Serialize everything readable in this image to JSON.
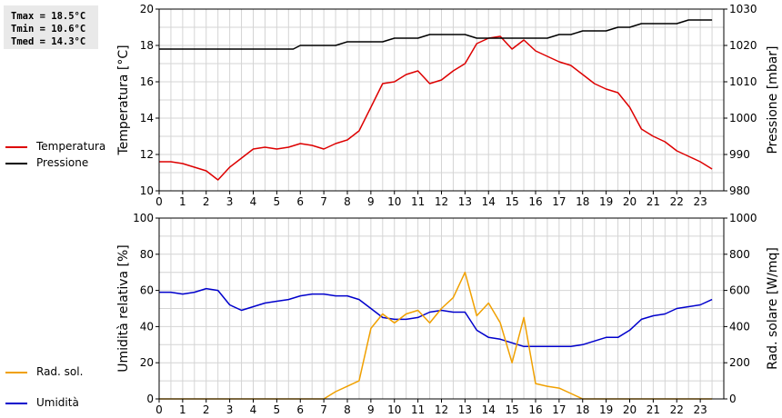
{
  "stats": {
    "tmax": "Tmax = 18.5°C",
    "tmin": "Tmin = 10.6°C",
    "tmed": "Tmed = 14.3°C"
  },
  "legend_top": [
    {
      "label": "Temperatura",
      "color": "#dd0000"
    },
    {
      "label": "Pressione",
      "color": "#000000"
    }
  ],
  "legend_bottom": [
    {
      "label": "Umidità",
      "color": "#0000cc"
    },
    {
      "label": "Rad. sol.",
      "color": "#f0a000"
    }
  ],
  "chart_data": [
    {
      "type": "line",
      "xlim": [
        0,
        24
      ],
      "x_ticks": [
        "0",
        "1",
        "2",
        "3",
        "4",
        "5",
        "6",
        "7",
        "8",
        "9",
        "10",
        "11",
        "12",
        "13",
        "14",
        "15",
        "16",
        "17",
        "18",
        "19",
        "20",
        "21",
        "22",
        "23"
      ],
      "grid": true,
      "ylabel": "Temperatura [°C]",
      "ylim": [
        10,
        20
      ],
      "y_ticks": [
        "10",
        "12",
        "14",
        "16",
        "18",
        "20"
      ],
      "y2label": "Pressione [mbar]",
      "y2lim": [
        980,
        1030
      ],
      "y2_ticks": [
        "980",
        "990",
        "1000",
        "1010",
        "1020",
        "1030"
      ],
      "series": [
        {
          "name": "Temperatura",
          "color": "#dd0000",
          "axis": "left",
          "x": [
            0,
            0.5,
            1,
            1.5,
            2,
            2.5,
            3,
            3.5,
            4,
            4.5,
            5,
            5.5,
            6,
            6.5,
            7,
            7.5,
            8,
            8.5,
            9,
            9.5,
            10,
            10.5,
            11,
            11.5,
            12,
            12.5,
            13,
            13.5,
            14,
            14.5,
            15,
            15.5,
            16,
            16.5,
            17,
            17.5,
            18,
            18.5,
            19,
            19.5,
            20,
            20.5,
            21,
            21.5,
            22,
            22.5,
            23,
            23.5
          ],
          "y": [
            11.6,
            11.6,
            11.5,
            11.3,
            11.1,
            10.6,
            11.3,
            11.8,
            12.3,
            12.4,
            12.3,
            12.4,
            12.6,
            12.5,
            12.3,
            12.6,
            12.8,
            13.3,
            14.6,
            15.9,
            16.0,
            16.4,
            16.6,
            15.9,
            16.1,
            16.6,
            17.0,
            18.1,
            18.4,
            18.5,
            17.8,
            18.3,
            17.7,
            17.4,
            17.1,
            16.9,
            16.4,
            15.9,
            15.6,
            15.4,
            14.6,
            13.4,
            13.0,
            12.7,
            12.2,
            11.9,
            11.6,
            11.2
          ]
        },
        {
          "name": "Pressione",
          "color": "#000000",
          "axis": "right",
          "x": [
            0,
            5.7,
            6,
            7.5,
            8,
            9.5,
            10,
            11,
            11.5,
            13,
            13.5,
            15,
            16,
            16.5,
            17,
            17.5,
            18,
            19,
            19.5,
            20,
            20.5,
            22,
            22.5,
            23,
            23.5
          ],
          "y": [
            1019,
            1019,
            1020,
            1020,
            1021,
            1021,
            1022,
            1022,
            1023,
            1023,
            1022,
            1022,
            1022,
            1022,
            1023,
            1023,
            1024,
            1024,
            1025,
            1025,
            1026,
            1026,
            1027,
            1027,
            1027
          ]
        }
      ]
    },
    {
      "type": "line",
      "xlim": [
        0,
        24
      ],
      "x_ticks": [
        "0",
        "1",
        "2",
        "3",
        "4",
        "5",
        "6",
        "7",
        "8",
        "9",
        "10",
        "11",
        "12",
        "13",
        "14",
        "15",
        "16",
        "17",
        "18",
        "19",
        "20",
        "21",
        "22",
        "23"
      ],
      "grid": true,
      "ylabel": "Umidità relativa [%]",
      "ylim": [
        0,
        100
      ],
      "y_ticks": [
        "0",
        "20",
        "40",
        "60",
        "80",
        "100"
      ],
      "y2label": "Rad. solare [W/mq]",
      "y2lim": [
        0,
        1000
      ],
      "y2_ticks": [
        "0",
        "200",
        "400",
        "600",
        "800",
        "1000"
      ],
      "series": [
        {
          "name": "Umidità",
          "color": "#0000cc",
          "axis": "left",
          "x": [
            0,
            0.5,
            1,
            1.5,
            2,
            2.5,
            3,
            3.5,
            4,
            4.5,
            5,
            5.5,
            6,
            6.5,
            7,
            7.5,
            8,
            8.5,
            9,
            9.5,
            10,
            10.5,
            11,
            11.5,
            12,
            12.5,
            13,
            13.5,
            14,
            14.5,
            15,
            15.5,
            16,
            16.5,
            17,
            17.5,
            18,
            18.5,
            19,
            19.5,
            20,
            20.5,
            21,
            21.5,
            22,
            22.5,
            23,
            23.5
          ],
          "y": [
            59,
            59,
            58,
            59,
            61,
            60,
            52,
            49,
            51,
            53,
            54,
            55,
            57,
            58,
            58,
            57,
            57,
            55,
            50,
            45,
            44,
            44,
            45,
            48,
            49,
            48,
            48,
            38,
            34,
            33,
            31,
            29,
            29,
            29,
            29,
            29,
            30,
            32,
            34,
            34,
            38,
            44,
            46,
            47,
            50,
            51,
            52,
            55
          ]
        },
        {
          "name": "Rad. sol.",
          "color": "#f0a000",
          "axis": "right",
          "x": [
            0,
            7,
            7.5,
            8,
            8.5,
            9,
            9.5,
            10,
            10.5,
            11,
            11.5,
            12,
            12.5,
            13,
            13.5,
            14,
            14.5,
            15,
            15.5,
            16,
            16.5,
            17,
            17.5,
            18,
            18.5,
            19,
            19.5,
            20,
            20.5,
            21,
            21.5,
            22,
            22.5,
            23,
            23.5
          ],
          "y": [
            0,
            0,
            40,
            70,
            100,
            390,
            470,
            420,
            470,
            490,
            420,
            500,
            560,
            700,
            460,
            530,
            420,
            200,
            450,
            85,
            70,
            60,
            30,
            0,
            0,
            0,
            0,
            0,
            0,
            0,
            0,
            0,
            0,
            0,
            0
          ]
        }
      ]
    }
  ]
}
